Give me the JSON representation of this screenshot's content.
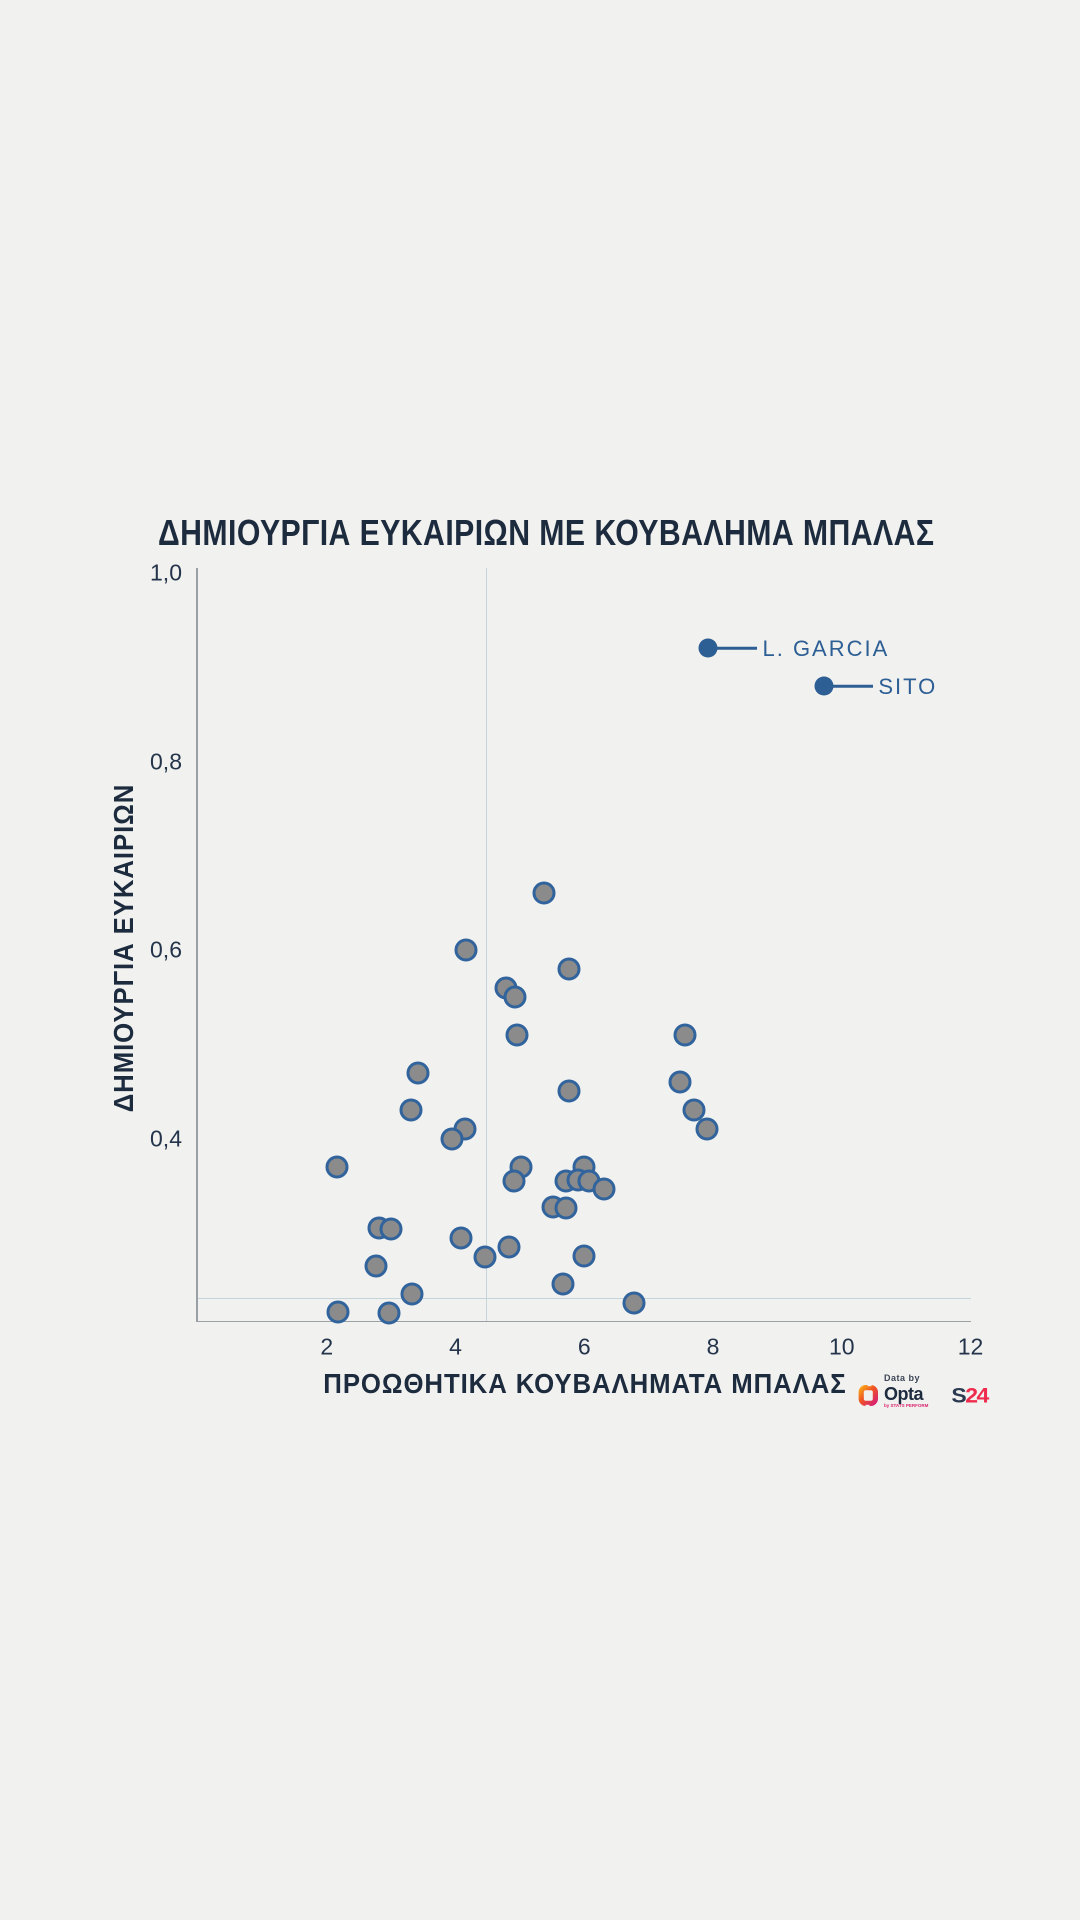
{
  "title": "ΔΗΜΙΟΥΡΓΙΑ ΕΥΚΑΙΡΙΩΝ ΜΕ ΚΟΥΒΑΛΗΜΑ ΜΠΑΛΑΣ",
  "colors": {
    "background": "#f1f1ef",
    "text_dark": "#1d2b3e",
    "accent_blue": "#2d5e94",
    "point_fill": "#8b8b8b",
    "point_border": "#31639c",
    "axis_line": "#9aa0a6",
    "ref_line": "#c3d4da",
    "opta_orange": "#f8a11b",
    "opta_magenta": "#d9256d",
    "s24_navy": "#2b3950",
    "s24_red": "#ee2b4d"
  },
  "footer": {
    "data_by": "Data by",
    "opta_wordmark": "Opta",
    "opta_sub": "by STATS PERFORM",
    "s24_prefix": "S",
    "s24_suffix": "24"
  },
  "chart_data": {
    "type": "scatter",
    "title": "ΔΗΜΙΟΥΡΓΙΑ ΕΥΚΑΙΡΙΩΝ ΜΕ ΚΟΥΒΑΛΗΜΑ ΜΠΑΛΑΣ",
    "xlabel": "ΠΡΟΩΘΗΤΙΚΑ ΚΟΥΒΑΛΗΜΑΤΑ ΜΠΑΛΑΣ",
    "ylabel": "ΔΗΜΙΟΥΡΓΙΑ ΕΥΚΑΙΡΙΩΝ",
    "xlim": [
      0,
      12
    ],
    "ylim": [
      0.2,
      1.0
    ],
    "x_ticks": [
      2,
      4,
      6,
      8,
      10,
      12
    ],
    "x_tick_labels": [
      "2",
      "4",
      "6",
      "8",
      "10",
      "12"
    ],
    "y_ticks": [
      0.4,
      0.6,
      0.8,
      1.0
    ],
    "y_tick_labels": [
      "0,4",
      "0,6",
      "0,8",
      "1,0"
    ],
    "grid": false,
    "ref_line_x": 4.48,
    "ref_line_y": 0.23,
    "points": [
      [
        5.38,
        0.66
      ],
      [
        4.17,
        0.6
      ],
      [
        5.77,
        0.58
      ],
      [
        4.79,
        0.56
      ],
      [
        4.93,
        0.55
      ],
      [
        4.96,
        0.51
      ],
      [
        7.57,
        0.51
      ],
      [
        3.42,
        0.47
      ],
      [
        7.48,
        0.46
      ],
      [
        5.77,
        0.45
      ],
      [
        3.31,
        0.43
      ],
      [
        7.71,
        0.43
      ],
      [
        4.14,
        0.41
      ],
      [
        7.91,
        0.41
      ],
      [
        3.95,
        0.4
      ],
      [
        2.16,
        0.37
      ],
      [
        5.02,
        0.37
      ],
      [
        6.0,
        0.37
      ],
      [
        4.91,
        0.355
      ],
      [
        5.72,
        0.355
      ],
      [
        5.91,
        0.356
      ],
      [
        6.08,
        0.355
      ],
      [
        6.3,
        0.346
      ],
      [
        5.52,
        0.327
      ],
      [
        5.71,
        0.326
      ],
      [
        2.81,
        0.305
      ],
      [
        3.0,
        0.304
      ],
      [
        4.09,
        0.294
      ],
      [
        4.83,
        0.285
      ],
      [
        6.0,
        0.275
      ],
      [
        4.46,
        0.274
      ],
      [
        2.77,
        0.265
      ],
      [
        5.67,
        0.246
      ],
      [
        3.33,
        0.235
      ],
      [
        2.18,
        0.216
      ],
      [
        2.97,
        0.215
      ],
      [
        6.78,
        0.225
      ]
    ],
    "highlighted_points": [
      {
        "name": "L. GARCIA",
        "x": 7.93,
        "y": 0.92
      },
      {
        "name": "SITO",
        "x": 9.73,
        "y": 0.88
      }
    ],
    "legend_position": "annotations-top-right"
  }
}
